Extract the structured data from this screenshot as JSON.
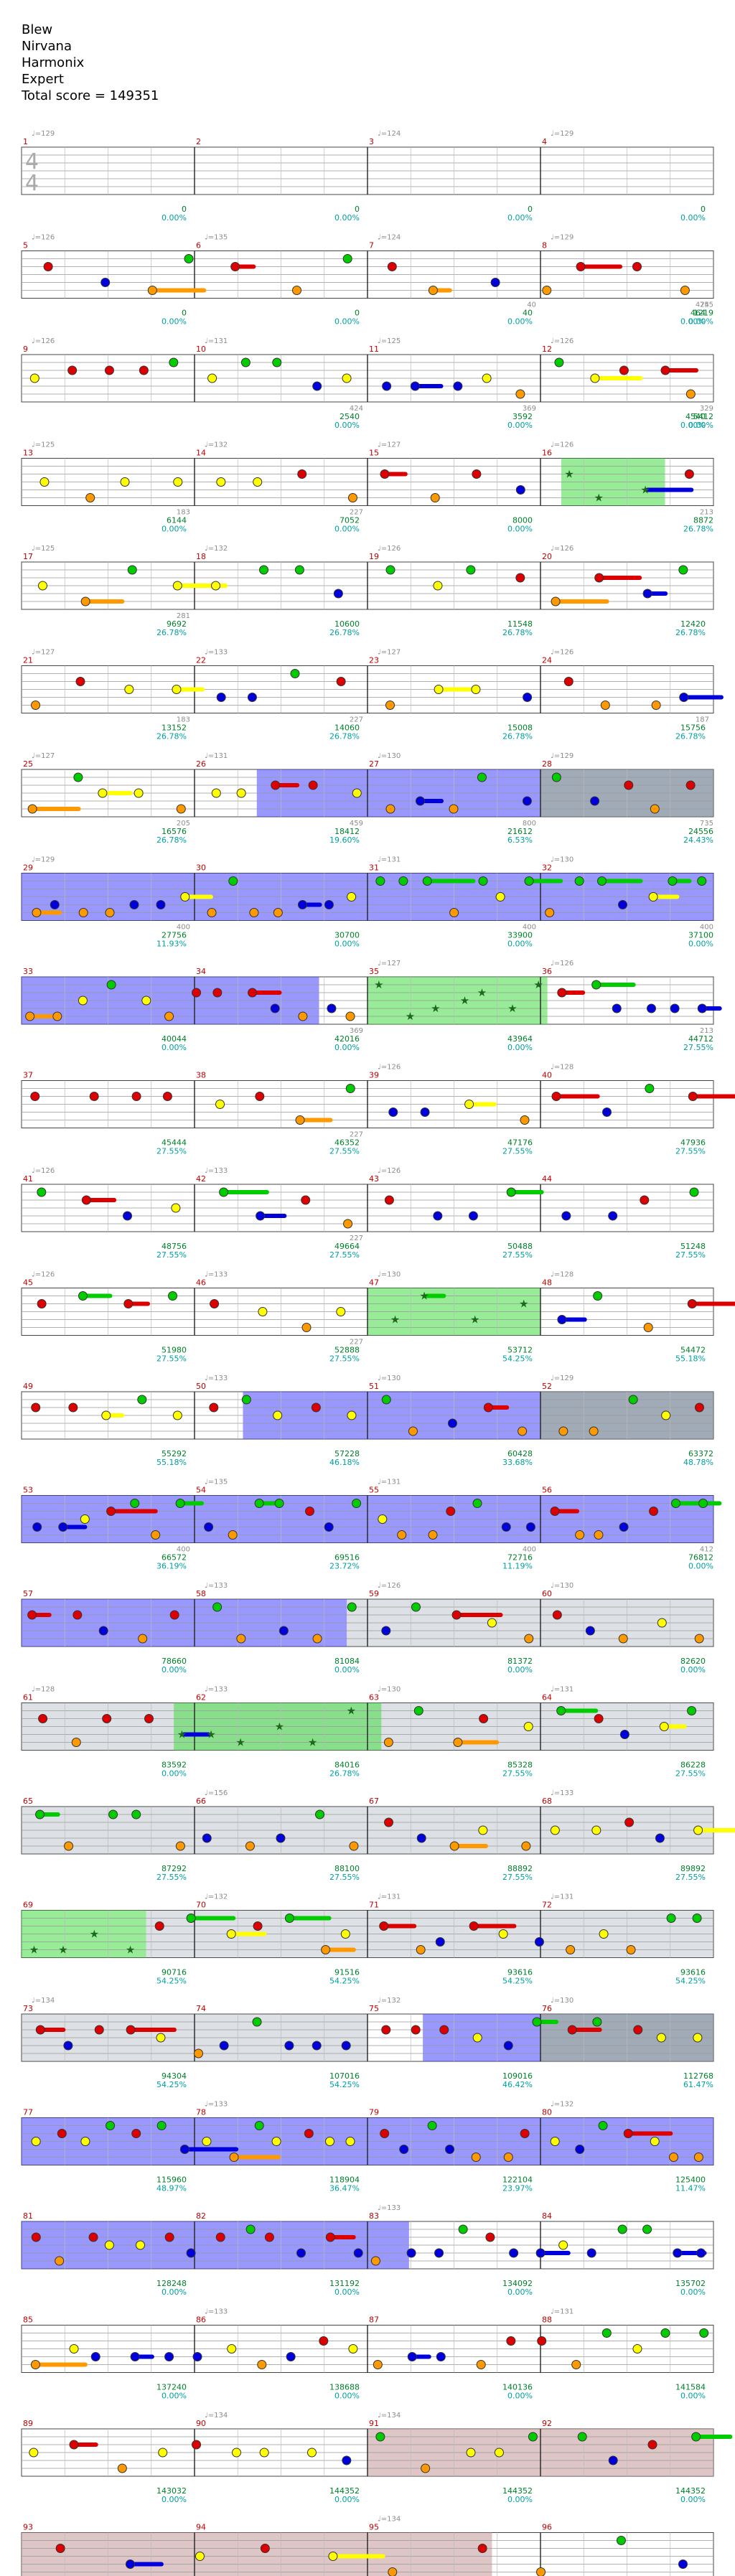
{
  "song": {
    "title": "Blew",
    "artist": "Nirvana",
    "charter": "Harmonix",
    "difficulty": "Expert",
    "total_score_label": "Total score = 149351"
  },
  "time_signature": {
    "top": "4",
    "bottom": "4"
  },
  "colors": {
    "measure_number": "#c00000",
    "tempo": "#8c8c8c",
    "score": "#00802b",
    "percent": "#00a0a0",
    "green_fret": "#00cc00",
    "red_fret": "#dd0000",
    "yellow_fret": "#ffff00",
    "blue_fret": "#0000dd",
    "orange_fret": "#ff9900",
    "star_power": "#44dd44",
    "overdrive_region": "#4444ff",
    "unison_region": "#778899",
    "coda_region": "#c8a0a0"
  },
  "rows": [
    {
      "row": 1,
      "measures": [
        {
          "number": "1",
          "tempo": "♩=129",
          "count": "",
          "score": "0",
          "percent": "0.00%"
        },
        {
          "number": "2",
          "tempo": "",
          "count": "",
          "score": "0",
          "percent": "0.00%"
        },
        {
          "number": "3",
          "tempo": "♩=124",
          "count": "",
          "score": "0",
          "percent": "0.00%"
        },
        {
          "number": "4",
          "tempo": "♩=129",
          "count": "",
          "score": "0",
          "percent": "0.00%"
        }
      ]
    },
    {
      "row": 2,
      "measures": [
        {
          "number": "5",
          "tempo": "♩=126",
          "count": "",
          "score": "0",
          "percent": "0.00%"
        },
        {
          "number": "6",
          "tempo": "♩=135",
          "count": "",
          "score": "0",
          "percent": "0.00%"
        },
        {
          "number": "7",
          "tempo": "♩=124",
          "count": "40",
          "score": "40",
          "percent": "0.00%"
        },
        {
          "number": "8",
          "tempo": "♩=129",
          "count": "424",
          "score": "464",
          "percent": "0.00%"
        }
      ],
      "tail": {
        "count": "755",
        "score": "1219",
        "percent": "0.00%"
      }
    },
    {
      "row": 3,
      "measures": [
        {
          "number": "9",
          "tempo": "♩=126",
          "count": "",
          "score": "",
          "percent": ""
        },
        {
          "number": "10",
          "tempo": "♩=131",
          "count": "424",
          "score": "2540",
          "percent": "0.00%"
        },
        {
          "number": "11",
          "tempo": "♩=125",
          "count": "369",
          "score": "3592",
          "percent": "0.00%"
        },
        {
          "number": "12",
          "tempo": "♩=126",
          "count": "",
          "score": "4540",
          "percent": "0.00%"
        }
      ],
      "tail": {
        "count": "329",
        "score": "5412",
        "percent": "0.00%"
      }
    },
    {
      "row": 4,
      "measures": [
        {
          "number": "13",
          "tempo": "♩=125",
          "count": "183",
          "score": "6144",
          "percent": "0.00%"
        },
        {
          "number": "14",
          "tempo": "♩=132",
          "count": "227",
          "score": "7052",
          "percent": "0.00%"
        },
        {
          "number": "15",
          "tempo": "♩=127",
          "count": "",
          "score": "8000",
          "percent": "0.00%"
        },
        {
          "number": "16",
          "tempo": "♩=126",
          "count": "",
          "score": "",
          "percent": ""
        }
      ],
      "tail": {
        "count": "213",
        "score": "8872",
        "percent": "26.78%"
      }
    },
    {
      "row": 5,
      "measures": [
        {
          "number": "17",
          "tempo": "♩=125",
          "count": "281",
          "score": "9692",
          "percent": "26.78%"
        },
        {
          "number": "18",
          "tempo": "♩=132",
          "count": "",
          "score": "10600",
          "percent": "26.78%"
        },
        {
          "number": "19",
          "tempo": "♩=126",
          "count": "",
          "score": "11548",
          "percent": "26.78%"
        },
        {
          "number": "20",
          "tempo": "♩=126",
          "count": "",
          "score": "12420",
          "percent": "26.78%"
        }
      ]
    },
    {
      "row": 6,
      "measures": [
        {
          "number": "21",
          "tempo": "♩=127",
          "count": "183",
          "score": "13152",
          "percent": "26.78%"
        },
        {
          "number": "22",
          "tempo": "♩=133",
          "count": "227",
          "score": "14060",
          "percent": "26.78%"
        },
        {
          "number": "23",
          "tempo": "♩=127",
          "count": "",
          "score": "15008",
          "percent": "26.78%"
        },
        {
          "number": "24",
          "tempo": "♩=126",
          "count": "187",
          "score": "15756",
          "percent": "26.78%"
        }
      ]
    },
    {
      "row": 7,
      "measures": [
        {
          "number": "25",
          "tempo": "♩=127",
          "count": "205",
          "score": "16576",
          "percent": "26.78%"
        },
        {
          "number": "26",
          "tempo": "♩=131",
          "count": "459",
          "score": "18412",
          "percent": "19.60%"
        },
        {
          "number": "27",
          "tempo": "♩=130",
          "count": "800",
          "score": "21612",
          "percent": "6.53%"
        },
        {
          "number": "28",
          "tempo": "♩=129",
          "count": "",
          "score": "",
          "percent": ""
        }
      ],
      "tail": {
        "count": "735",
        "score": "24556",
        "percent": "24.43%"
      }
    },
    {
      "row": 8,
      "measures": [
        {
          "number": "29",
          "tempo": "♩=129",
          "count": "400",
          "score": "27756",
          "percent": "11.93%"
        },
        {
          "number": "30",
          "tempo": "",
          "count": "",
          "score": "30700",
          "percent": "0.00%"
        },
        {
          "number": "31",
          "tempo": "♩=131",
          "count": "400",
          "score": "33900",
          "percent": "0.00%"
        },
        {
          "number": "32",
          "tempo": "♩=130",
          "count": "",
          "score": "",
          "percent": ""
        }
      ],
      "tail": {
        "count": "400",
        "score": "37100",
        "percent": "0.00%"
      }
    },
    {
      "row": 9,
      "measures": [
        {
          "number": "33",
          "tempo": "",
          "count": "",
          "score": "40044",
          "percent": "0.00%"
        },
        {
          "number": "34",
          "tempo": "",
          "count": "369",
          "score": "42016",
          "percent": "0.00%"
        },
        {
          "number": "35",
          "tempo": "♩=127",
          "count": "",
          "score": "43964",
          "percent": "0.00%"
        },
        {
          "number": "36",
          "tempo": "♩=126",
          "count": "",
          "score": "",
          "percent": ""
        }
      ],
      "tail": {
        "count": "213",
        "score": "44712",
        "percent": "27.55%"
      }
    },
    {
      "row": 10,
      "measures": [
        {
          "number": "37",
          "tempo": "",
          "count": "",
          "score": "45444",
          "percent": "27.55%"
        },
        {
          "number": "38",
          "tempo": "",
          "count": "227",
          "score": "46352",
          "percent": "27.55%"
        },
        {
          "number": "39",
          "tempo": "♩=126",
          "count": "",
          "score": "47176",
          "percent": "27.55%"
        },
        {
          "number": "40",
          "tempo": "♩=128",
          "count": "",
          "score": "47936",
          "percent": "27.55%"
        }
      ]
    },
    {
      "row": 11,
      "measures": [
        {
          "number": "41",
          "tempo": "♩=126",
          "count": "",
          "score": "48756",
          "percent": "27.55%"
        },
        {
          "number": "42",
          "tempo": "♩=133",
          "count": "227",
          "score": "49664",
          "percent": "27.55%"
        },
        {
          "number": "43",
          "tempo": "♩=126",
          "count": "",
          "score": "50488",
          "percent": "27.55%"
        },
        {
          "number": "44",
          "tempo": "",
          "count": "",
          "score": "51248",
          "percent": "27.55%"
        }
      ]
    },
    {
      "row": 12,
      "measures": [
        {
          "number": "45",
          "tempo": "♩=126",
          "count": "",
          "score": "51980",
          "percent": "27.55%"
        },
        {
          "number": "46",
          "tempo": "♩=133",
          "count": "227",
          "score": "52888",
          "percent": "27.55%"
        },
        {
          "number": "47",
          "tempo": "♩=130",
          "count": "",
          "score": "53712",
          "percent": "54.25%"
        },
        {
          "number": "48",
          "tempo": "♩=128",
          "count": "",
          "score": "54472",
          "percent": "55.18%"
        }
      ]
    },
    {
      "row": 13,
      "measures": [
        {
          "number": "49",
          "tempo": "",
          "count": "",
          "score": "55292",
          "percent": "55.18%"
        },
        {
          "number": "50",
          "tempo": "♩=133",
          "count": "",
          "score": "57228",
          "percent": "46.18%"
        },
        {
          "number": "51",
          "tempo": "♩=130",
          "count": "",
          "score": "60428",
          "percent": "33.68%"
        },
        {
          "number": "52",
          "tempo": "♩=129",
          "count": "",
          "score": "",
          "percent": ""
        }
      ],
      "tail": {
        "count": "",
        "score": "63372",
        "percent": "48.78%"
      }
    },
    {
      "row": 14,
      "measures": [
        {
          "number": "53",
          "tempo": "",
          "count": "400",
          "score": "66572",
          "percent": "36.19%"
        },
        {
          "number": "54",
          "tempo": "♩=135",
          "count": "",
          "score": "69516",
          "percent": "23.72%"
        },
        {
          "number": "55",
          "tempo": "♩=131",
          "count": "400",
          "score": "72716",
          "percent": "11.19%"
        },
        {
          "number": "56",
          "tempo": "",
          "count": "",
          "score": "",
          "percent": ""
        }
      ],
      "tail": {
        "count": "412",
        "score": "76812",
        "percent": "0.00%"
      }
    },
    {
      "row": 15,
      "measures": [
        {
          "number": "57",
          "tempo": "",
          "count": "",
          "score": "78660",
          "percent": "0.00%"
        },
        {
          "number": "58",
          "tempo": "♩=133",
          "count": "",
          "score": "81084",
          "percent": "0.00%"
        },
        {
          "number": "59",
          "tempo": "♩=126",
          "count": "",
          "score": "81372",
          "percent": "0.00%"
        },
        {
          "number": "60",
          "tempo": "♩=130",
          "count": "",
          "score": "82620",
          "percent": "0.00%"
        }
      ]
    },
    {
      "row": 16,
      "measures": [
        {
          "number": "61",
          "tempo": "♩=128",
          "count": "",
          "score": "83592",
          "percent": "0.00%"
        },
        {
          "number": "62",
          "tempo": "♩=133",
          "count": "",
          "score": "84016",
          "percent": "26.78%"
        },
        {
          "number": "63",
          "tempo": "♩=130",
          "count": "",
          "score": "85328",
          "percent": "27.55%"
        },
        {
          "number": "64",
          "tempo": "♩=131",
          "count": "",
          "score": "86228",
          "percent": "27.55%"
        }
      ]
    },
    {
      "row": 17,
      "measures": [
        {
          "number": "65",
          "tempo": "",
          "count": "",
          "score": "87292",
          "percent": "27.55%"
        },
        {
          "number": "66",
          "tempo": "♩=156",
          "count": "",
          "score": "88100",
          "percent": "27.55%"
        },
        {
          "number": "67",
          "tempo": "",
          "count": "",
          "score": "88892",
          "percent": "27.55%"
        },
        {
          "number": "68",
          "tempo": "♩=133",
          "count": "",
          "score": "89892",
          "percent": "27.55%"
        }
      ]
    },
    {
      "row": 18,
      "measures": [
        {
          "number": "69",
          "tempo": "",
          "count": "",
          "score": "90716",
          "percent": "54.25%"
        },
        {
          "number": "70",
          "tempo": "♩=132",
          "count": "",
          "score": "91516",
          "percent": "54.25%"
        },
        {
          "number": "71",
          "tempo": "♩=131",
          "count": "",
          "score": "93616",
          "percent": "54.25%"
        },
        {
          "number": "72",
          "tempo": "♩=131",
          "count": "",
          "score": "93616",
          "percent": "54.25%"
        }
      ]
    },
    {
      "row": 19,
      "measures": [
        {
          "number": "73",
          "tempo": "♩=134",
          "count": "",
          "score": "94304",
          "percent": "54.25%"
        },
        {
          "number": "74",
          "tempo": "",
          "count": "",
          "score": "107016",
          "percent": "54.25%"
        },
        {
          "number": "75",
          "tempo": "♩=132",
          "count": "",
          "score": "109016",
          "percent": "46.42%"
        },
        {
          "number": "76",
          "tempo": "♩=130",
          "count": "",
          "score": "",
          "percent": ""
        }
      ],
      "tail": {
        "count": "",
        "score": "112768",
        "percent": "61.47%"
      }
    },
    {
      "row": 20,
      "measures": [
        {
          "number": "77",
          "tempo": "",
          "count": "",
          "score": "115960",
          "percent": "48.97%"
        },
        {
          "number": "78",
          "tempo": "♩=133",
          "count": "",
          "score": "118904",
          "percent": "36.47%"
        },
        {
          "number": "79",
          "tempo": "",
          "count": "",
          "score": "122104",
          "percent": "23.97%"
        },
        {
          "number": "80",
          "tempo": "♩=132",
          "count": "",
          "score": "125400",
          "percent": "11.47%"
        }
      ]
    },
    {
      "row": 21,
      "measures": [
        {
          "number": "81",
          "tempo": "",
          "count": "",
          "score": "128248",
          "percent": "0.00%"
        },
        {
          "number": "82",
          "tempo": "",
          "count": "",
          "score": "131192",
          "percent": "0.00%"
        },
        {
          "number": "83",
          "tempo": "♩=133",
          "count": "",
          "score": "134092",
          "percent": "0.00%"
        },
        {
          "number": "84",
          "tempo": "",
          "count": "",
          "score": "135702",
          "percent": "0.00%"
        }
      ]
    },
    {
      "row": 22,
      "measures": [
        {
          "number": "85",
          "tempo": "",
          "count": "",
          "score": "137240",
          "percent": "0.00%"
        },
        {
          "number": "86",
          "tempo": "♩=133",
          "count": "",
          "score": "138688",
          "percent": "0.00%"
        },
        {
          "number": "87",
          "tempo": "",
          "count": "",
          "score": "140136",
          "percent": "0.00%"
        },
        {
          "number": "88",
          "tempo": "♩=131",
          "count": "",
          "score": "141584",
          "percent": "0.00%"
        }
      ]
    },
    {
      "row": 23,
      "measures": [
        {
          "number": "89",
          "tempo": "",
          "count": "",
          "score": "143032",
          "percent": "0.00%"
        },
        {
          "number": "90",
          "tempo": "♩=134",
          "count": "",
          "score": "144352",
          "percent": "0.00%"
        },
        {
          "number": "91",
          "tempo": "♩=134",
          "count": "",
          "score": "144352",
          "percent": "0.00%"
        },
        {
          "number": "92",
          "tempo": "",
          "count": "",
          "score": "144352",
          "percent": "0.00%"
        }
      ]
    },
    {
      "row": 24,
      "measures": [
        {
          "number": "93",
          "tempo": "",
          "count": "",
          "score": "144352",
          "percent": "0.00%"
        },
        {
          "number": "94",
          "tempo": "",
          "count": "",
          "score": "144352",
          "percent": "0.00%"
        },
        {
          "number": "95",
          "tempo": "♩=134",
          "count": "",
          "score": "144352",
          "percent": "0.00%"
        },
        {
          "number": "96",
          "tempo": "",
          "count": "",
          "score": "144951",
          "percent": "0.00%"
        }
      ]
    }
  ]
}
